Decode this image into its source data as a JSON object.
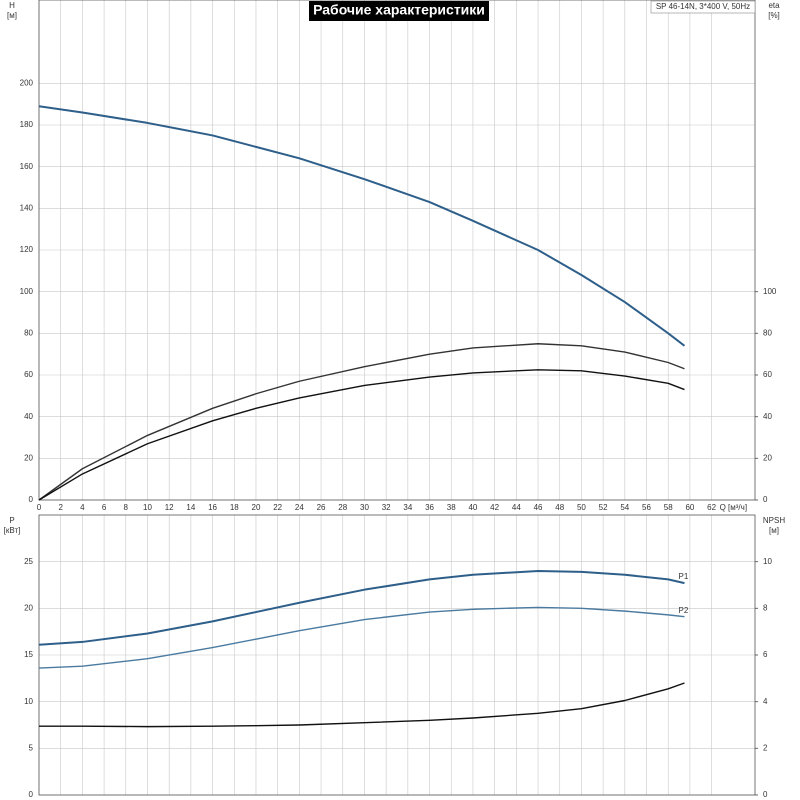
{
  "chart_data": [
    {
      "type": "line",
      "title": "Рабочие характеристики",
      "subtitle": "SP 46-14N, 3*400 V, 50Hz",
      "ylabel": [
        "H",
        "[м]"
      ],
      "y2label": [
        "eta",
        "[%]"
      ],
      "xlabel": "Q [м³/ч]",
      "x": [
        0,
        4,
        10,
        16,
        20,
        24,
        30,
        36,
        40,
        46,
        50,
        54,
        58,
        59.5
      ],
      "series": [
        {
          "color": "#2e5f8a",
          "values": [
            189,
            186,
            181,
            175,
            169.5,
            164,
            154,
            143,
            134,
            120,
            108,
            95,
            80,
            74
          ]
        },
        {
          "color": "#333333",
          "axis": "y2",
          "values": [
            0,
            15,
            31,
            44,
            51,
            57,
            64,
            70,
            73,
            75,
            74,
            71,
            66,
            63
          ]
        },
        {
          "color": "#111111",
          "axis": "y2",
          "values": [
            0,
            12.5,
            27,
            38,
            44,
            49,
            55,
            59,
            61,
            62.5,
            62,
            59.5,
            56,
            53
          ]
        }
      ],
      "xlim": [
        0,
        66
      ],
      "xticks": [
        0,
        2,
        4,
        6,
        8,
        10,
        12,
        14,
        16,
        18,
        20,
        22,
        24,
        26,
        28,
        30,
        32,
        34,
        36,
        38,
        40,
        42,
        44,
        46,
        48,
        50,
        52,
        54,
        56,
        58,
        60,
        62
      ],
      "ylim": [
        0,
        240
      ],
      "yticks": [
        0,
        20,
        40,
        60,
        80,
        100,
        120,
        140,
        160,
        180,
        200
      ],
      "y2lim": [
        0,
        240
      ],
      "y2ticks": [
        0,
        20,
        40,
        60,
        80,
        100
      ],
      "grid": true
    },
    {
      "type": "line",
      "ylabel": [
        "P",
        "[кВт]"
      ],
      "y2label": [
        "NPSH",
        "[м]"
      ],
      "x": [
        0,
        4,
        10,
        16,
        20,
        24,
        30,
        36,
        40,
        46,
        50,
        54,
        58,
        59.5
      ],
      "series": [
        {
          "name": "P1",
          "color": "#2e5f8a",
          "values": [
            16.1,
            16.4,
            17.3,
            18.6,
            19.6,
            20.6,
            22,
            23.1,
            23.6,
            24,
            23.9,
            23.6,
            23.1,
            22.7
          ]
        },
        {
          "name": "P2",
          "color": "#4a7aa0",
          "values": [
            13.6,
            13.8,
            14.6,
            15.8,
            16.7,
            17.6,
            18.8,
            19.6,
            19.9,
            20.1,
            20,
            19.7,
            19.3,
            19.1
          ]
        },
        {
          "color": "#111111",
          "axis": "y2",
          "values": [
            2.95,
            2.95,
            2.93,
            2.95,
            2.97,
            3.0,
            3.1,
            3.2,
            3.3,
            3.5,
            3.7,
            4.05,
            4.55,
            4.8
          ]
        }
      ],
      "xlim": [
        0,
        66
      ],
      "xticks": [
        0,
        2,
        4,
        6,
        8,
        10,
        12,
        14,
        16,
        18,
        20,
        22,
        24,
        26,
        28,
        30,
        32,
        34,
        36,
        38,
        40,
        42,
        44,
        46,
        48,
        50,
        52,
        54,
        56,
        58,
        60,
        62
      ],
      "ylim": [
        0,
        30
      ],
      "yticks": [
        0,
        5,
        10,
        15,
        20,
        25
      ],
      "y2lim": [
        0,
        12
      ],
      "y2ticks": [
        0,
        2,
        4,
        6,
        8,
        10
      ],
      "grid": true
    }
  ]
}
